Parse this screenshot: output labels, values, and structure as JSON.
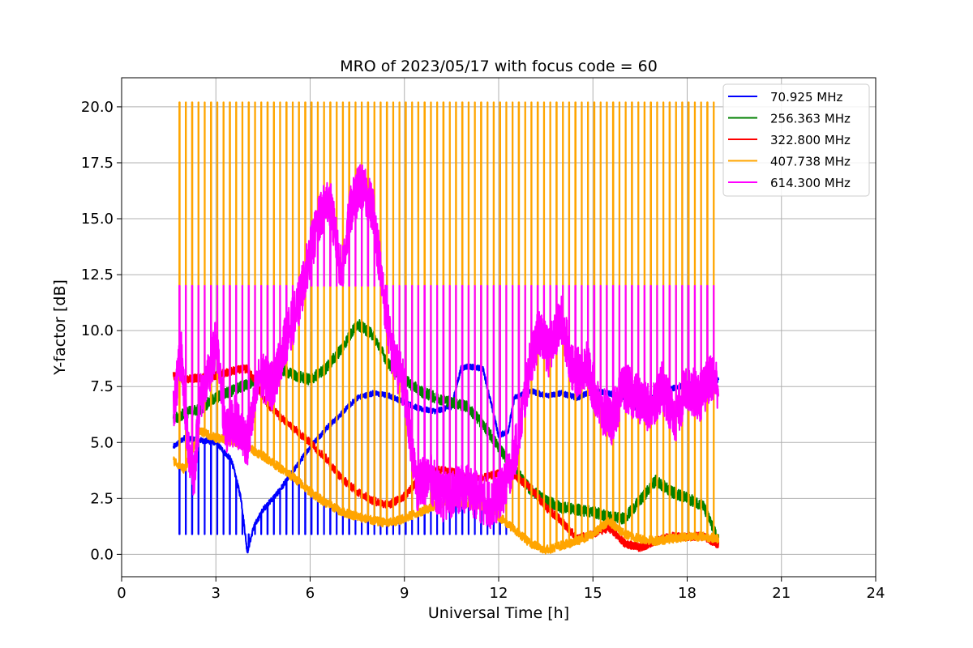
{
  "chart_data": {
    "type": "line",
    "title": "MRO of 2023/05/17 with focus code = 60",
    "xlabel": "Universal Time [h]",
    "ylabel": "Y-factor [dB]",
    "xlim": [
      0,
      24
    ],
    "ylim": [
      -1.0,
      21.3
    ],
    "xticks": [
      0,
      3,
      6,
      9,
      12,
      15,
      18,
      21,
      24
    ],
    "xtick_labels": [
      "0",
      "3",
      "6",
      "9",
      "12",
      "15",
      "18",
      "21",
      "24"
    ],
    "yticks": [
      0.0,
      2.5,
      5.0,
      7.5,
      10.0,
      12.5,
      15.0,
      17.5,
      20.0
    ],
    "ytick_labels": [
      "0.0",
      "2.5",
      "5.0",
      "7.5",
      "10.0",
      "12.5",
      "15.0",
      "17.5",
      "20.0"
    ],
    "grid": true,
    "legend_position": "top-right",
    "calibration_spike_period_h": 0.2,
    "series": [
      {
        "name": " 70.925 MHz",
        "color": "#0000ff",
        "spike_min": 0.9,
        "spike_end_h": 12.4,
        "x": [
          1.65,
          2.0,
          2.5,
          3.0,
          3.5,
          3.8,
          4.0,
          4.2,
          4.5,
          5.0,
          5.5,
          6.0,
          6.5,
          7.0,
          7.5,
          8.0,
          8.5,
          9.0,
          9.5,
          10.0,
          10.5,
          10.8,
          11.0,
          11.5,
          12.0,
          12.3,
          12.5,
          13.0,
          13.5,
          14.0,
          14.5,
          15.0,
          15.5,
          16.0,
          16.5,
          17.0,
          17.5,
          18.0,
          18.5,
          19.0
        ],
        "y": [
          4.8,
          5.2,
          5.1,
          5.0,
          4.2,
          2.5,
          0.1,
          1.2,
          2.0,
          2.8,
          3.8,
          4.8,
          5.6,
          6.3,
          7.0,
          7.2,
          7.1,
          6.8,
          6.5,
          6.4,
          6.6,
          8.3,
          8.4,
          8.3,
          5.3,
          5.5,
          7.0,
          7.3,
          7.1,
          7.2,
          7.0,
          7.3,
          7.2,
          7.0,
          6.3,
          7.2,
          7.4,
          7.6,
          7.5,
          7.8
        ]
      },
      {
        "name": "256.363 MHz",
        "color": "#008000",
        "spike_min": null,
        "x": [
          1.65,
          2.0,
          2.5,
          3.0,
          3.5,
          4.0,
          4.5,
          5.0,
          5.5,
          6.0,
          6.5,
          7.0,
          7.5,
          8.0,
          8.5,
          9.0,
          9.5,
          10.0,
          10.5,
          11.0,
          11.5,
          12.0,
          12.5,
          13.0,
          13.5,
          14.0,
          14.5,
          15.0,
          15.5,
          16.0,
          16.5,
          17.0,
          17.5,
          18.0,
          18.5,
          19.0
        ],
        "y": [
          6.0,
          6.3,
          6.5,
          7.0,
          7.3,
          7.6,
          8.0,
          8.3,
          8.0,
          7.8,
          8.3,
          9.2,
          10.3,
          9.8,
          8.5,
          7.8,
          7.3,
          7.0,
          6.8,
          6.6,
          5.8,
          4.8,
          3.8,
          2.9,
          2.4,
          2.1,
          2.0,
          1.9,
          1.7,
          1.6,
          2.4,
          3.3,
          2.8,
          2.5,
          2.2,
          0.6
        ]
      },
      {
        "name": "322.800 MHz",
        "color": "#ff0000",
        "spike_min": null,
        "x": [
          1.65,
          2.0,
          2.5,
          3.0,
          3.5,
          4.0,
          4.3,
          4.6,
          5.0,
          5.5,
          6.0,
          6.5,
          7.0,
          7.5,
          8.0,
          8.5,
          9.0,
          9.5,
          10.0,
          10.5,
          11.0,
          11.5,
          12.0,
          12.5,
          13.0,
          13.5,
          14.0,
          14.5,
          15.0,
          15.5,
          16.0,
          16.5,
          17.0,
          17.5,
          18.0,
          18.5,
          19.0
        ],
        "y": [
          8.0,
          7.8,
          7.9,
          8.0,
          8.2,
          8.3,
          7.6,
          6.8,
          6.2,
          5.6,
          5.0,
          4.3,
          3.4,
          2.8,
          2.4,
          2.2,
          2.6,
          3.4,
          3.8,
          3.7,
          3.4,
          3.4,
          3.6,
          3.5,
          3.0,
          2.1,
          1.5,
          0.7,
          0.9,
          1.2,
          0.5,
          0.3,
          0.6,
          0.8,
          0.8,
          0.8,
          0.4
        ]
      },
      {
        "name": "407.738 MHz",
        "color": "#ffa500",
        "spike_min": 12.0,
        "spike_max": 20.2,
        "spike_end_h": 19.0,
        "x": [
          1.65,
          2.0,
          2.5,
          3.0,
          3.5,
          4.0,
          4.5,
          5.0,
          5.5,
          6.0,
          6.5,
          7.0,
          7.5,
          8.0,
          8.5,
          9.0,
          9.5,
          10.0,
          10.5,
          11.0,
          11.5,
          12.0,
          12.5,
          13.0,
          13.5,
          14.0,
          14.5,
          15.0,
          15.5,
          16.0,
          16.5,
          17.0,
          17.5,
          18.0,
          18.5,
          19.0
        ],
        "y": [
          4.2,
          3.8,
          5.5,
          5.2,
          5.1,
          4.8,
          4.4,
          3.9,
          3.4,
          2.8,
          2.3,
          1.9,
          1.7,
          1.5,
          1.4,
          1.6,
          1.9,
          2.2,
          2.4,
          2.3,
          2.1,
          1.7,
          1.1,
          0.5,
          0.2,
          0.4,
          0.6,
          0.9,
          1.5,
          0.9,
          0.7,
          0.6,
          0.7,
          0.8,
          0.8,
          0.7
        ]
      },
      {
        "name": "614.300 MHz",
        "color": "#ff00ff",
        "spike_min": 12.0,
        "spike_end_h": 19.0,
        "x": [
          1.65,
          1.9,
          2.1,
          2.3,
          2.5,
          2.8,
          3.0,
          3.3,
          3.6,
          4.0,
          4.4,
          4.8,
          5.2,
          5.6,
          6.0,
          6.3,
          6.6,
          7.0,
          7.3,
          7.6,
          8.0,
          8.3,
          8.6,
          9.0,
          9.4,
          9.8,
          10.2,
          10.6,
          11.0,
          11.4,
          11.8,
          12.2,
          12.6,
          13.0,
          13.3,
          13.6,
          14.0,
          14.4,
          14.8,
          15.2,
          15.6,
          16.0,
          16.4,
          16.8,
          17.2,
          17.6,
          18.0,
          18.4,
          18.8,
          19.0
        ],
        "y": [
          6.5,
          9.0,
          5.0,
          3.5,
          7.0,
          8.0,
          9.5,
          5.5,
          6.0,
          5.0,
          8.0,
          7.5,
          9.5,
          11.0,
          13.5,
          15.0,
          16.0,
          12.5,
          15.5,
          16.5,
          15.5,
          12.0,
          9.0,
          7.5,
          3.0,
          3.5,
          2.5,
          2.8,
          3.0,
          2.5,
          2.2,
          3.0,
          5.0,
          8.5,
          10.0,
          9.0,
          10.5,
          8.0,
          8.5,
          6.5,
          6.0,
          7.5,
          7.0,
          6.5,
          7.5,
          6.0,
          7.5,
          7.0,
          8.0,
          7.5
        ]
      }
    ]
  }
}
